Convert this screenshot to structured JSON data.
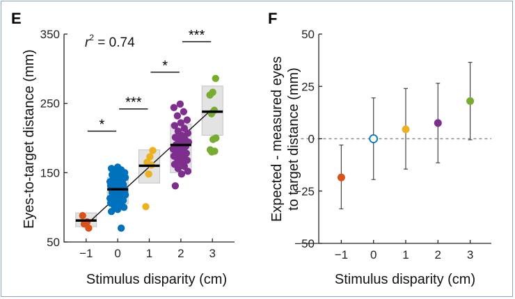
{
  "chart_data": [
    {
      "panel": "E",
      "type": "scatter",
      "xlabel": "Stimulus disparity (cm)",
      "ylabel": "Eyes-to-target distance (mm)",
      "xlim": [
        -1.7,
        3.7
      ],
      "ylim": [
        50,
        350
      ],
      "xticks": [
        -1,
        0,
        1,
        2,
        3
      ],
      "xtick_labels": [
        "−1",
        "0",
        "1",
        "2",
        "3"
      ],
      "yticks": [
        50,
        150,
        250,
        350
      ],
      "annotation": {
        "prefix": "r",
        "sup": "2",
        "suffix": " = 0.74"
      },
      "fit_line": {
        "x": [
          -0.92,
          3.02
        ],
        "y": [
          78,
          243
        ]
      },
      "groups": [
        {
          "x": -1,
          "color": "#d95319",
          "median": 81,
          "box": [
            72,
            92
          ],
          "points": [
            88,
            79,
            76,
            70
          ]
        },
        {
          "x": 0,
          "color": "#0072bd",
          "median": 126,
          "box": [
            105,
            143
          ],
          "points": [
            158,
            156,
            154,
            152,
            150,
            149,
            147,
            146,
            144,
            143,
            141,
            140,
            139,
            138,
            137,
            135,
            134,
            133,
            132,
            131,
            130,
            129,
            128,
            127,
            126,
            125,
            124,
            123,
            122,
            121,
            120,
            119,
            118,
            117,
            116,
            115,
            114,
            113,
            112,
            111,
            110,
            108,
            106,
            104,
            102,
            100,
            97,
            94,
            70
          ]
        },
        {
          "x": 1,
          "color": "#edb120",
          "median": 160,
          "box": [
            135,
            183
          ],
          "points": [
            182,
            173,
            165,
            161,
            148,
            101
          ]
        },
        {
          "x": 2,
          "color": "#7e2f8e",
          "median": 190,
          "box": [
            150,
            220
          ],
          "points": [
            249,
            244,
            238,
            232,
            226,
            222,
            218,
            214,
            210,
            207,
            204,
            201,
            198,
            196,
            194,
            192,
            190,
            188,
            186,
            184,
            182,
            180,
            178,
            176,
            174,
            172,
            170,
            168,
            165,
            162,
            159,
            156,
            152,
            148,
            131
          ]
        },
        {
          "x": 3,
          "color": "#77ac30",
          "median": 238,
          "box": [
            204,
            275
          ],
          "points": [
            286,
            266,
            262,
            240,
            235,
            200,
            198,
            183,
            181,
            180
          ]
        }
      ],
      "significance": [
        {
          "from": -1,
          "to": 0,
          "y": 210,
          "label": "*"
        },
        {
          "from": 0,
          "to": 1,
          "y": 242,
          "label": "***"
        },
        {
          "from": 1,
          "to": 2,
          "y": 295,
          "label": "*"
        },
        {
          "from": 2,
          "to": 3,
          "y": 339,
          "label": "***"
        }
      ]
    },
    {
      "panel": "F",
      "type": "errorbar",
      "xlabel": "Stimulus disparity (cm)",
      "ylabel_line1": "Expected - measured eyes",
      "ylabel_line2": "to target distance (mm)",
      "xlim": [
        -1.7,
        3.7
      ],
      "ylim": [
        -50,
        50
      ],
      "xticks": [
        -1,
        0,
        1,
        2,
        3
      ],
      "xtick_labels": [
        "−1",
        "0",
        "1",
        "2",
        "3"
      ],
      "yticks": [
        -50,
        -25,
        0,
        25,
        50
      ],
      "ytick_labels": [
        "−50",
        "−25",
        "0",
        "25",
        "50"
      ],
      "reference_line": 0,
      "points": [
        {
          "x": -1,
          "y": -18.5,
          "low": -33.5,
          "high": -3.0,
          "color": "#d95319",
          "filled": true
        },
        {
          "x": 0,
          "y": 0,
          "low": -19.5,
          "high": 19.5,
          "color": "#0072bd",
          "filled": false
        },
        {
          "x": 1,
          "y": 4.5,
          "low": -14.5,
          "high": 24.0,
          "color": "#edb120",
          "filled": true
        },
        {
          "x": 2,
          "y": 7.5,
          "low": -11.5,
          "high": 26.5,
          "color": "#7e2f8e",
          "filled": true
        },
        {
          "x": 3,
          "y": 18.0,
          "low": -0.5,
          "high": 36.5,
          "color": "#77ac30",
          "filled": true
        }
      ]
    }
  ]
}
